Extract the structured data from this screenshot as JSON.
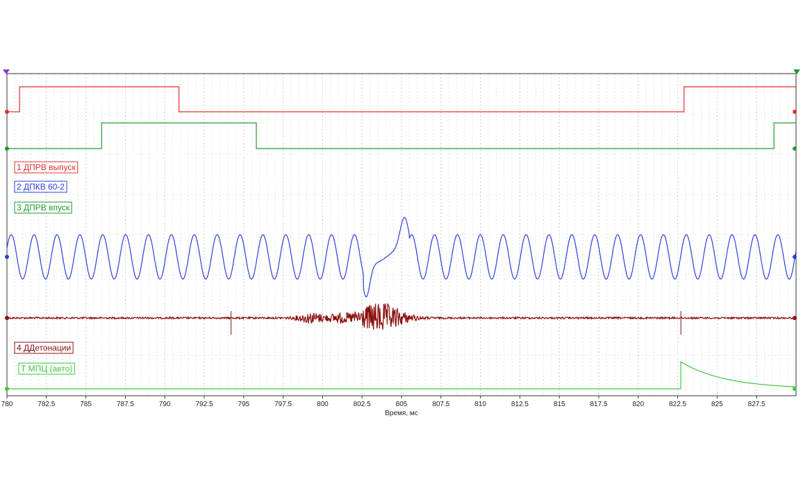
{
  "chart_data": {
    "type": "line",
    "title": "",
    "xlabel": "Время, мс",
    "ylabel": "",
    "xlim": [
      780,
      830
    ],
    "grid": true,
    "x_ticks": [
      780,
      782.5,
      785,
      787.5,
      790,
      792.5,
      795,
      797.5,
      800,
      802.5,
      805,
      807.5,
      810,
      812.5,
      815,
      817.5,
      820,
      822.5,
      825,
      827.5
    ],
    "x_tick_labels": [
      "780",
      "782.5",
      "785",
      "787.5",
      "790",
      "792.5",
      "795",
      "797.5",
      "800",
      "802.5",
      "805",
      "807.5",
      "810",
      "812.5",
      "815",
      "817.5",
      "820",
      "822.5",
      "825",
      "827.5"
    ],
    "series": [
      {
        "name": "1 ДПРВ выпуск",
        "color": "#e03030",
        "kind": "digital",
        "transitions": [
          {
            "x": 780.0,
            "level": "low"
          },
          {
            "x": 780.8,
            "level": "high"
          },
          {
            "x": 790.9,
            "level": "low"
          },
          {
            "x": 822.9,
            "level": "high"
          }
        ]
      },
      {
        "name": "2 ДПКВ 60-2",
        "color": "#2a3fd8",
        "kind": "sine",
        "period_ms": 1.45,
        "gap_start_ms": 802.6,
        "gap_end_ms": 805.5
      },
      {
        "name": "3 ДПРВ впуск",
        "color": "#1e9a2e",
        "kind": "digital",
        "transitions": [
          {
            "x": 780.0,
            "level": "low"
          },
          {
            "x": 786.0,
            "level": "high"
          },
          {
            "x": 795.8,
            "level": "low"
          },
          {
            "x": 828.6,
            "level": "high"
          }
        ]
      },
      {
        "name": "4 ДДетонации",
        "color": "#8b0f0f",
        "kind": "noise",
        "bursts": [
          {
            "center_ms": 799.3,
            "width_ms": 0.9,
            "amplitude": 0.35
          },
          {
            "center_ms": 801.0,
            "width_ms": 0.6,
            "amplitude": 0.25
          },
          {
            "center_ms": 803.6,
            "width_ms": 1.6,
            "amplitude": 1.0
          }
        ],
        "spikes_ms": [
          794.2,
          822.7
        ]
      },
      {
        "name": "Т МПЦ (авто)",
        "color": "#3cc63c",
        "kind": "decay",
        "step_ms": 822.7
      }
    ]
  }
}
